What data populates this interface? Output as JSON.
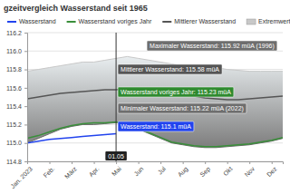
{
  "chart_data": {
    "type": "line",
    "title": "gzeitvergleich Wasserstand seit 1965",
    "categories": [
      "Jan. 2023",
      null,
      "Feb.",
      null,
      "März",
      null,
      "Apr.",
      null,
      "Mai",
      null,
      "Jun",
      null,
      "Jul",
      null,
      "Aug",
      null,
      "Sep",
      null,
      "Okt",
      null,
      "Nov",
      null,
      "Dez",
      null
    ],
    "series": [
      {
        "name": "Wasserstand",
        "type": "line",
        "color": "#2244ee",
        "values": [
          115.0,
          115.02,
          115.04,
          115.05,
          115.06,
          115.07,
          115.08,
          115.09,
          115.1,
          null,
          null,
          null,
          null,
          null,
          null,
          null,
          null,
          null,
          null,
          null,
          null,
          null,
          null,
          null
        ]
      },
      {
        "name": "Wasserstand voriges Jahr",
        "type": "line",
        "color": "#3a8f3a",
        "values": [
          115.05,
          115.08,
          115.12,
          115.16,
          115.19,
          115.21,
          115.22,
          115.22,
          115.23,
          115.21,
          115.16,
          115.11,
          115.06,
          115.01,
          114.99,
          114.97,
          114.96,
          114.96,
          114.97,
          114.98,
          114.99,
          115.01,
          115.03,
          115.06
        ]
      },
      {
        "name": "Mittlerer Wasserstand",
        "type": "line",
        "color": "#555555",
        "values": [
          115.48,
          115.5,
          115.52,
          115.54,
          115.55,
          115.56,
          115.57,
          115.58,
          115.58,
          115.59,
          115.59,
          115.58,
          115.57,
          115.55,
          115.53,
          115.51,
          115.49,
          115.48,
          115.47,
          115.47,
          115.48,
          115.49,
          115.5,
          115.51
        ]
      },
      {
        "name": "Extremwerte",
        "type": "area",
        "color": "#c8c8c8",
        "values": [
          115.78,
          115.8,
          115.82,
          115.84,
          115.86,
          115.88,
          115.88,
          115.9,
          115.92,
          115.94,
          115.92,
          115.9,
          115.88,
          115.86,
          115.84,
          115.83,
          115.82,
          115.82,
          115.8,
          115.79,
          115.78,
          115.78,
          115.78,
          115.78
        ],
        "low": [
          115.0,
          115.05,
          115.1,
          115.15,
          115.18,
          115.2,
          115.2,
          115.21,
          115.22,
          115.2,
          115.15,
          115.1,
          115.05,
          115.0,
          114.98,
          114.96,
          114.95,
          114.95,
          114.96,
          114.97,
          114.98,
          115.0,
          115.02,
          115.05
        ]
      }
    ],
    "ylim": [
      114.8,
      116.2
    ],
    "yticks": [
      114.8,
      {
        "value": 115,
        "label": "115.0"
      },
      115.2,
      115.4,
      115.6,
      115.8,
      {
        "value": 116,
        "label": "116.0"
      },
      116.2
    ],
    "grid": true,
    "legend": "top",
    "crosshair": {
      "label": "01.05",
      "at": 8
    },
    "annotations": [
      {
        "text": "Maximaler Wasserstand: 115.92 müA (1996)",
        "color": "#6e6e6e"
      },
      {
        "text": "Mittlerer Wasserstand: 115.58 müA",
        "color": "#555555"
      },
      {
        "text": "Wasserstand voriges Jahr: 115.23 müA",
        "color": "#2f8a2f"
      },
      {
        "text": "Minimaler Wasserstand: 115.22 müA (2022)",
        "color": "#6e6e6e"
      },
      {
        "text": "Wasserstand: 115.1 müA",
        "color": "#2244ee"
      }
    ]
  }
}
